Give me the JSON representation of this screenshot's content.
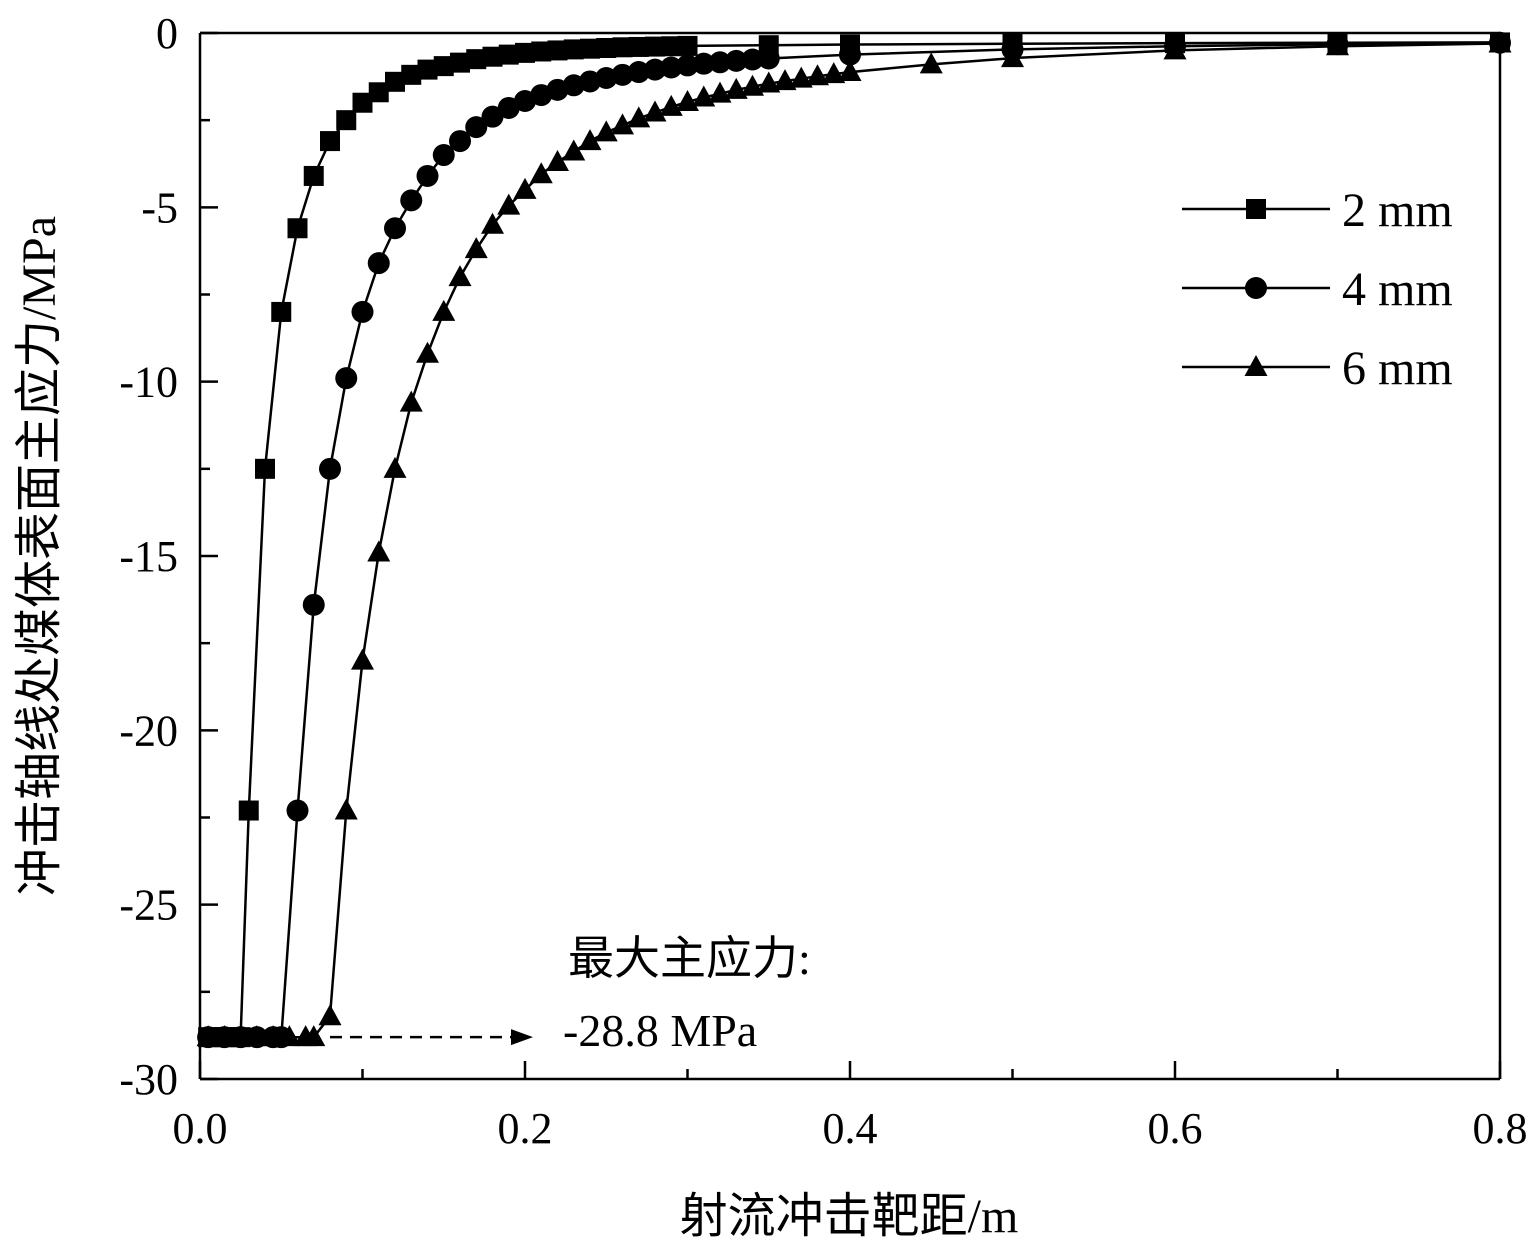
{
  "chart_data": {
    "type": "line",
    "xlabel": "射流冲击靶距/m",
    "ylabel": "冲击轴线处煤体表面主应力/MPa",
    "xlim": [
      0,
      0.8
    ],
    "ylim": [
      -30,
      0
    ],
    "x_ticks": [
      "0.0",
      "0.2",
      "0.4",
      "0.6",
      "0.8"
    ],
    "y_ticks": [
      "0",
      "-5",
      "-10",
      "-15",
      "-20",
      "-25",
      "-30"
    ],
    "legend_position": "top-right",
    "grid": false,
    "series": [
      {
        "name": "2 mm",
        "marker": "square",
        "x": [
          0.005,
          0.01,
          0.015,
          0.02,
          0.025,
          0.03,
          0.04,
          0.05,
          0.06,
          0.07,
          0.08,
          0.09,
          0.1,
          0.11,
          0.12,
          0.13,
          0.14,
          0.15,
          0.16,
          0.17,
          0.18,
          0.19,
          0.2,
          0.21,
          0.22,
          0.23,
          0.24,
          0.25,
          0.26,
          0.27,
          0.28,
          0.29,
          0.3,
          0.35,
          0.4,
          0.5,
          0.6,
          0.7,
          0.8
        ],
        "y": [
          -28.8,
          -28.8,
          -28.8,
          -28.8,
          -28.8,
          -22.3,
          -12.5,
          -8.0,
          -5.6,
          -4.1,
          -3.1,
          -2.5,
          -2.0,
          -1.7,
          -1.4,
          -1.2,
          -1.05,
          -0.95,
          -0.85,
          -0.75,
          -0.68,
          -0.62,
          -0.57,
          -0.53,
          -0.5,
          -0.47,
          -0.45,
          -0.43,
          -0.41,
          -0.4,
          -0.39,
          -0.38,
          -0.37,
          -0.35,
          -0.33,
          -0.31,
          -0.29,
          -0.28,
          -0.27
        ]
      },
      {
        "name": "4 mm",
        "marker": "circle",
        "x": [
          0.005,
          0.015,
          0.025,
          0.035,
          0.045,
          0.05,
          0.06,
          0.07,
          0.08,
          0.09,
          0.1,
          0.11,
          0.12,
          0.13,
          0.14,
          0.15,
          0.16,
          0.17,
          0.18,
          0.19,
          0.2,
          0.21,
          0.22,
          0.23,
          0.24,
          0.25,
          0.26,
          0.27,
          0.28,
          0.29,
          0.3,
          0.31,
          0.32,
          0.33,
          0.34,
          0.35,
          0.4,
          0.5,
          0.6,
          0.7,
          0.8
        ],
        "y": [
          -28.8,
          -28.8,
          -28.8,
          -28.8,
          -28.8,
          -28.8,
          -22.3,
          -16.4,
          -12.5,
          -9.9,
          -8.0,
          -6.6,
          -5.6,
          -4.8,
          -4.1,
          -3.5,
          -3.1,
          -2.7,
          -2.4,
          -2.15,
          -1.95,
          -1.78,
          -1.63,
          -1.5,
          -1.39,
          -1.29,
          -1.2,
          -1.12,
          -1.05,
          -0.99,
          -0.93,
          -0.88,
          -0.84,
          -0.8,
          -0.76,
          -0.73,
          -0.62,
          -0.47,
          -0.38,
          -0.32,
          -0.28
        ]
      },
      {
        "name": "6 mm",
        "marker": "triangle",
        "x": [
          0.005,
          0.015,
          0.025,
          0.035,
          0.045,
          0.055,
          0.065,
          0.07,
          0.08,
          0.09,
          0.1,
          0.11,
          0.12,
          0.13,
          0.14,
          0.15,
          0.16,
          0.17,
          0.18,
          0.19,
          0.2,
          0.21,
          0.22,
          0.23,
          0.24,
          0.25,
          0.26,
          0.27,
          0.28,
          0.29,
          0.3,
          0.31,
          0.32,
          0.33,
          0.34,
          0.35,
          0.36,
          0.37,
          0.38,
          0.39,
          0.4,
          0.45,
          0.5,
          0.6,
          0.7,
          0.8
        ],
        "y": [
          -28.8,
          -28.8,
          -28.8,
          -28.8,
          -28.8,
          -28.8,
          -28.8,
          -28.8,
          -28.2,
          -22.3,
          -18.0,
          -14.9,
          -12.5,
          -10.6,
          -9.2,
          -8.0,
          -7.0,
          -6.2,
          -5.5,
          -4.95,
          -4.5,
          -4.05,
          -3.7,
          -3.4,
          -3.1,
          -2.85,
          -2.65,
          -2.45,
          -2.28,
          -2.12,
          -1.98,
          -1.85,
          -1.74,
          -1.63,
          -1.54,
          -1.45,
          -1.38,
          -1.31,
          -1.24,
          -1.18,
          -1.12,
          -0.9,
          -0.72,
          -0.5,
          -0.38,
          -0.3
        ]
      }
    ],
    "annotation": {
      "line1": "最大主应力:",
      "line2": "-28.8 MPa",
      "x": 0.2,
      "y": -28.8
    }
  }
}
